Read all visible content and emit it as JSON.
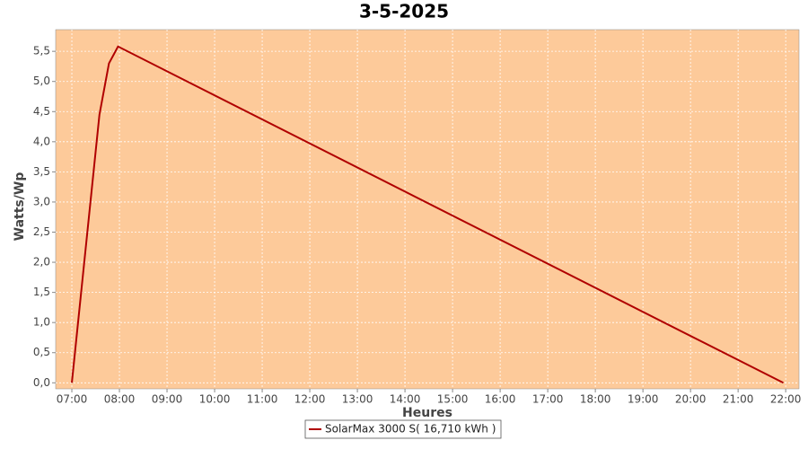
{
  "chart_data": {
    "type": "line",
    "title": "3-5-2025",
    "x_label": "Heures",
    "y_label": "Watts/Wp",
    "x": [
      7.0,
      7.58,
      7.78,
      7.97,
      21.95
    ],
    "series": [
      {
        "name": "SolarMax 3000 S( 16,710 kWh )",
        "color": "#b00000",
        "values": [
          0,
          4.45,
          5.3,
          5.58,
          0
        ]
      }
    ],
    "xlim": [
      6.66,
      22.28
    ],
    "xticks": [
      {
        "value": 7,
        "label": "07:00"
      },
      {
        "value": 8,
        "label": "08:00"
      },
      {
        "value": 9,
        "label": "09:00"
      },
      {
        "value": 10,
        "label": "10:00"
      },
      {
        "value": 11,
        "label": "11:00"
      },
      {
        "value": 12,
        "label": "12:00"
      },
      {
        "value": 13,
        "label": "13:00"
      },
      {
        "value": 14,
        "label": "14:00"
      },
      {
        "value": 15,
        "label": "15:00"
      },
      {
        "value": 16,
        "label": "16:00"
      },
      {
        "value": 17,
        "label": "17:00"
      },
      {
        "value": 18,
        "label": "18:00"
      },
      {
        "value": 19,
        "label": "19:00"
      },
      {
        "value": 20,
        "label": "20:00"
      },
      {
        "value": 21,
        "label": "21:00"
      },
      {
        "value": 22,
        "label": "22:00"
      }
    ],
    "ylim": [
      -0.1,
      5.86
    ],
    "yticks": [
      {
        "value": 0,
        "label": "0,0"
      },
      {
        "value": 0.5,
        "label": "0,5"
      },
      {
        "value": 1,
        "label": "1,0"
      },
      {
        "value": 1.5,
        "label": "1,5"
      },
      {
        "value": 2,
        "label": "2,0"
      },
      {
        "value": 2.5,
        "label": "2,5"
      },
      {
        "value": 3,
        "label": "3,0"
      },
      {
        "value": 3.5,
        "label": "3,5"
      },
      {
        "value": 4,
        "label": "4,0"
      },
      {
        "value": 4.5,
        "label": "4,5"
      },
      {
        "value": 5,
        "label": "5,0"
      },
      {
        "value": 5.5,
        "label": "5,5"
      }
    ],
    "grid": true,
    "plot_background": "#fdca9a",
    "legend": "bottom"
  }
}
